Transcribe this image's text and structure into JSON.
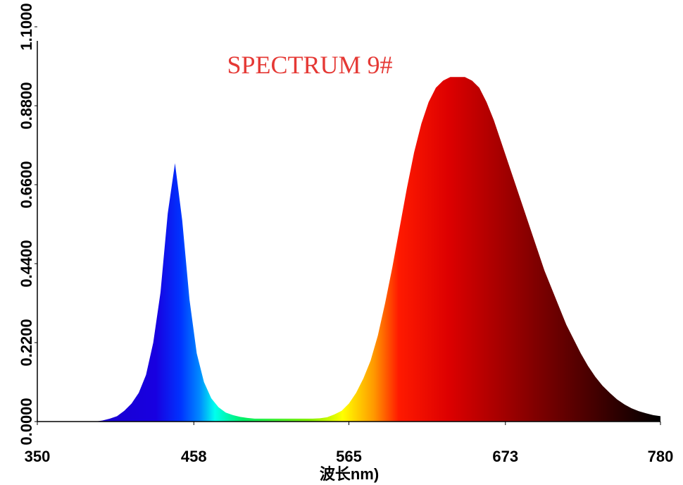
{
  "chart_data": {
    "type": "area",
    "title": "SPECTRUM 9#",
    "x_label": "波长nm)",
    "x": [
      350,
      355,
      360,
      365,
      370,
      375,
      380,
      385,
      390,
      395,
      400,
      405,
      410,
      415,
      420,
      425,
      430,
      435,
      440,
      445,
      450,
      455,
      460,
      465,
      470,
      475,
      480,
      485,
      490,
      495,
      500,
      505,
      510,
      515,
      520,
      525,
      530,
      535,
      540,
      545,
      550,
      555,
      560,
      565,
      570,
      575,
      580,
      585,
      590,
      595,
      600,
      605,
      610,
      615,
      620,
      625,
      630,
      635,
      640,
      645,
      650,
      655,
      660,
      665,
      670,
      675,
      680,
      685,
      690,
      695,
      700,
      705,
      710,
      715,
      720,
      725,
      730,
      735,
      740,
      745,
      750,
      755,
      760,
      765,
      770,
      775,
      780
    ],
    "values": [
      0,
      0,
      0,
      0,
      0,
      0,
      0,
      0,
      0,
      0.003,
      0.008,
      0.015,
      0.03,
      0.05,
      0.08,
      0.13,
      0.22,
      0.36,
      0.58,
      0.72,
      0.56,
      0.34,
      0.19,
      0.11,
      0.065,
      0.04,
      0.025,
      0.018,
      0.013,
      0.01,
      0.008,
      0.008,
      0.008,
      0.008,
      0.008,
      0.008,
      0.008,
      0.008,
      0.008,
      0.009,
      0.012,
      0.02,
      0.03,
      0.05,
      0.08,
      0.12,
      0.17,
      0.24,
      0.33,
      0.43,
      0.54,
      0.65,
      0.75,
      0.83,
      0.89,
      0.93,
      0.95,
      0.96,
      0.96,
      0.96,
      0.95,
      0.93,
      0.89,
      0.84,
      0.78,
      0.72,
      0.66,
      0.6,
      0.54,
      0.48,
      0.42,
      0.37,
      0.32,
      0.27,
      0.23,
      0.19,
      0.155,
      0.125,
      0.1,
      0.08,
      0.062,
      0.048,
      0.037,
      0.029,
      0.023,
      0.018,
      0.015
    ],
    "xlim": [
      350,
      780
    ],
    "xticks": [
      350,
      458,
      565,
      673,
      780
    ],
    "ylim": [
      0,
      1.1
    ],
    "yticks": [
      {
        "value": 0,
        "label": "0.0000"
      },
      {
        "value": 0.22,
        "label": "0.2200"
      },
      {
        "value": 0.44,
        "label": "0.4400"
      },
      {
        "value": 0.66,
        "label": "0.6600"
      },
      {
        "value": 0.88,
        "label": "0.8800"
      },
      {
        "value": 1.1,
        "label": "1.1000"
      }
    ]
  }
}
